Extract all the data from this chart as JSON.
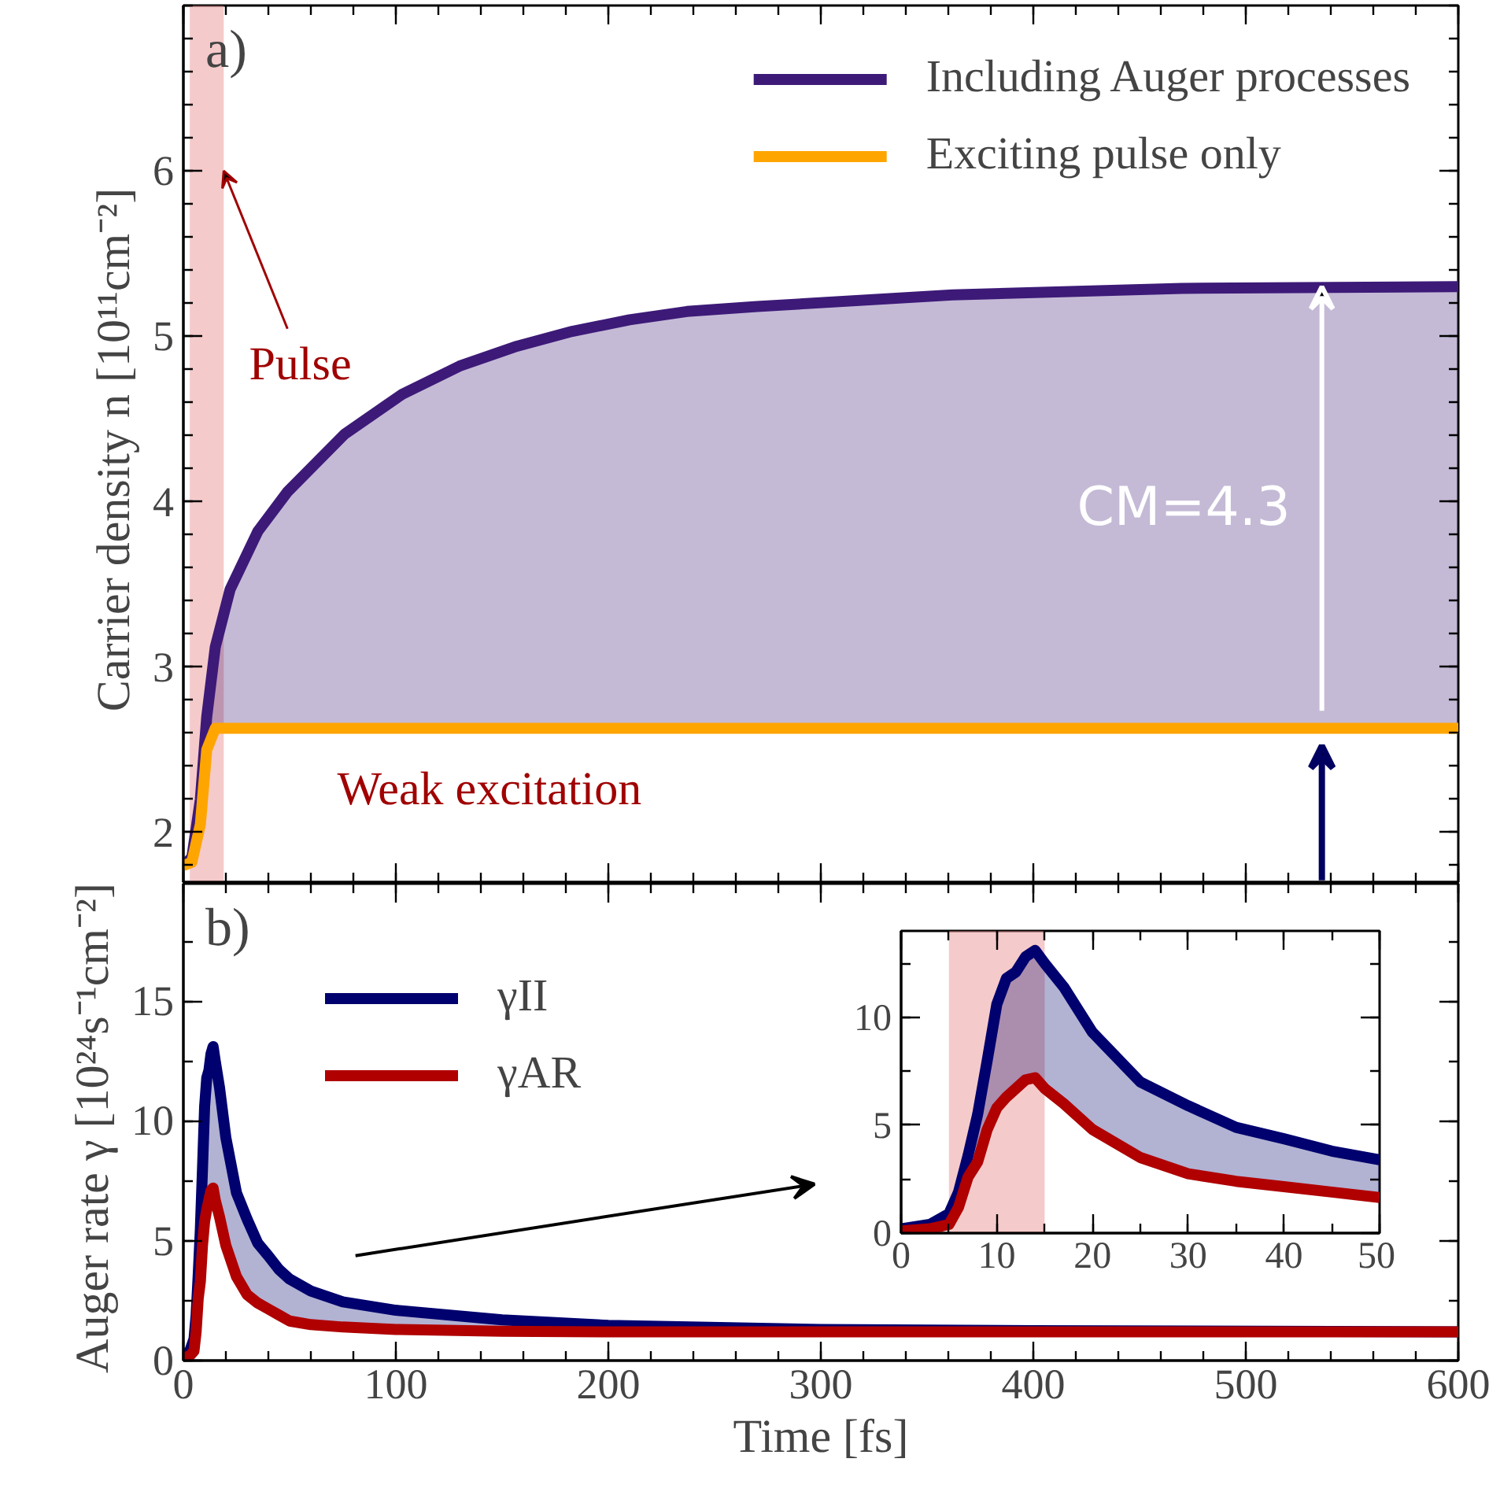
{
  "chart_data": [
    {
      "type": "line",
      "title": "a)",
      "ylabel": "Carrier density n  [10¹¹cm⁻²]",
      "xlim": [
        0,
        600
      ],
      "ylim": [
        1.7,
        7.0
      ],
      "xticks": [
        0,
        100,
        200,
        300,
        400,
        500,
        600
      ],
      "yticks": [
        2,
        3,
        4,
        5,
        6
      ],
      "tick_labels": "y",
      "legend": "top right",
      "grid": false,
      "x": [
        0,
        4,
        8,
        11,
        15,
        22,
        35,
        49,
        76,
        103,
        130,
        157,
        183,
        210,
        237,
        270,
        362,
        470,
        600
      ],
      "series": [
        {
          "name": "Including Auger processes",
          "color": "#3d1a78",
          "values": [
            1.8,
            1.85,
            2.2,
            2.7,
            3.12,
            3.47,
            3.82,
            4.06,
            4.41,
            4.65,
            4.82,
            4.94,
            5.03,
            5.1,
            5.15,
            5.18,
            5.25,
            5.29,
            5.3
          ],
          "lower": [
            1.8,
            1.82,
            2.05,
            2.5,
            2.63,
            2.63,
            2.63,
            2.63,
            2.63,
            2.63,
            2.63,
            2.63,
            2.63,
            2.63,
            2.63,
            2.63,
            2.63,
            2.63,
            2.63
          ],
          "upper": [
            1.8,
            1.85,
            2.2,
            2.7,
            3.12,
            3.47,
            3.82,
            4.06,
            4.41,
            4.65,
            4.82,
            4.94,
            5.03,
            5.1,
            5.15,
            5.18,
            5.25,
            5.29,
            5.3
          ]
        },
        {
          "name": "Exciting pulse only",
          "color": "#ffa500",
          "values": [
            1.8,
            1.82,
            2.05,
            2.5,
            2.63,
            2.63,
            2.63,
            2.63,
            2.63,
            2.63,
            2.63,
            2.63,
            2.63,
            2.63,
            2.63,
            2.63,
            2.63,
            2.63,
            2.63
          ]
        }
      ],
      "bands": [
        {
          "axis": "x",
          "from": 3,
          "to": 19,
          "color": "#e88a8a"
        }
      ],
      "annotations": [
        {
          "text": "Pulse",
          "x": 19,
          "y": 6
        },
        {
          "text": "Weak excitation",
          "x": 144,
          "y": 2.63
        },
        "CM=4.3"
      ]
    },
    {
      "type": "line",
      "title": "b)",
      "xlabel": "Time [fs]",
      "ylabel": "Auger rate  γ [10²⁴s⁻¹cm⁻²]",
      "xlim": [
        0,
        600
      ],
      "ylim": [
        0,
        19.9
      ],
      "xticks": [
        0,
        100,
        200,
        300,
        400,
        500,
        600
      ],
      "yticks": [
        0,
        5,
        10,
        15
      ],
      "legend": "top left",
      "grid": false,
      "x": [
        0,
        3,
        5,
        6,
        7,
        8,
        9,
        10,
        11,
        12,
        13,
        14,
        15,
        17,
        20,
        25,
        30,
        35,
        40,
        45,
        50,
        60,
        75,
        100,
        150,
        200,
        300,
        400,
        600
      ],
      "series": [
        {
          "name": "γII",
          "color": "#00006e",
          "values": [
            0.2,
            0.4,
            0.9,
            1.9,
            3.6,
            5.5,
            8.0,
            10.6,
            11.8,
            12.1,
            12.8,
            13.1,
            12.5,
            11.4,
            9.3,
            7.0,
            5.9,
            4.9,
            4.37,
            3.8,
            3.4,
            2.9,
            2.45,
            2.1,
            1.7,
            1.47,
            1.3,
            1.25,
            1.2
          ],
          "lower": [
            0.1,
            0.2,
            0.4,
            1.2,
            2.6,
            3.3,
            4.8,
            5.8,
            6.3,
            6.7,
            7.1,
            7.2,
            6.7,
            6.0,
            4.8,
            3.5,
            2.75,
            2.4,
            2.15,
            1.9,
            1.65,
            1.5,
            1.4,
            1.3,
            1.22,
            1.2,
            1.2,
            1.2,
            1.2
          ],
          "upper": [
            0.2,
            0.4,
            0.9,
            1.9,
            3.6,
            5.5,
            8.0,
            10.6,
            11.8,
            12.1,
            12.8,
            13.1,
            12.5,
            11.4,
            9.3,
            7.0,
            5.9,
            4.9,
            4.37,
            3.8,
            3.4,
            2.9,
            2.45,
            2.1,
            1.7,
            1.47,
            1.3,
            1.25,
            1.2
          ]
        },
        {
          "name": "γAR",
          "color": "#b00000",
          "values": [
            0.1,
            0.2,
            0.4,
            1.2,
            2.6,
            3.3,
            4.8,
            5.8,
            6.3,
            6.7,
            7.1,
            7.2,
            6.7,
            6.0,
            4.8,
            3.5,
            2.75,
            2.4,
            2.15,
            1.9,
            1.65,
            1.5,
            1.4,
            1.3,
            1.22,
            1.2,
            1.2,
            1.2,
            1.2
          ]
        }
      ]
    },
    {
      "type": "line",
      "xlim": [
        0,
        50
      ],
      "ylim": [
        0,
        14
      ],
      "xticks": [
        0,
        10,
        20,
        30,
        40,
        50
      ],
      "yticks": [
        0,
        5,
        10
      ],
      "grid": false,
      "x": [
        0,
        3,
        5,
        6,
        7,
        8,
        9,
        10,
        11,
        12,
        13,
        14,
        15,
        17,
        20,
        25,
        30,
        35,
        40,
        45,
        50
      ],
      "series": [
        {
          "color": "#00006e",
          "values": [
            0.2,
            0.4,
            0.9,
            1.9,
            3.6,
            5.5,
            8.0,
            10.6,
            11.8,
            12.1,
            12.8,
            13.1,
            12.5,
            11.4,
            9.3,
            7.0,
            5.9,
            4.9,
            4.37,
            3.8,
            3.4
          ],
          "lower": [
            0.1,
            0.2,
            0.4,
            1.2,
            2.6,
            3.3,
            4.8,
            5.8,
            6.3,
            6.7,
            7.1,
            7.2,
            6.7,
            6.0,
            4.8,
            3.5,
            2.75,
            2.4,
            2.15,
            1.9,
            1.65
          ],
          "upper": [
            0.2,
            0.4,
            0.9,
            1.9,
            3.6,
            5.5,
            8.0,
            10.6,
            11.8,
            12.1,
            12.8,
            13.1,
            12.5,
            11.4,
            9.3,
            7.0,
            5.9,
            4.9,
            4.37,
            3.8,
            3.4
          ]
        },
        {
          "color": "#b00000",
          "values": [
            0.1,
            0.2,
            0.4,
            1.2,
            2.6,
            3.3,
            4.8,
            5.8,
            6.3,
            6.7,
            7.1,
            7.2,
            6.7,
            6.0,
            4.8,
            3.5,
            2.75,
            2.4,
            2.15,
            1.9,
            1.65
          ]
        }
      ],
      "bands": [
        {
          "axis": "x",
          "from": 5,
          "to": 15,
          "color": "#e88a8a"
        }
      ]
    }
  ]
}
